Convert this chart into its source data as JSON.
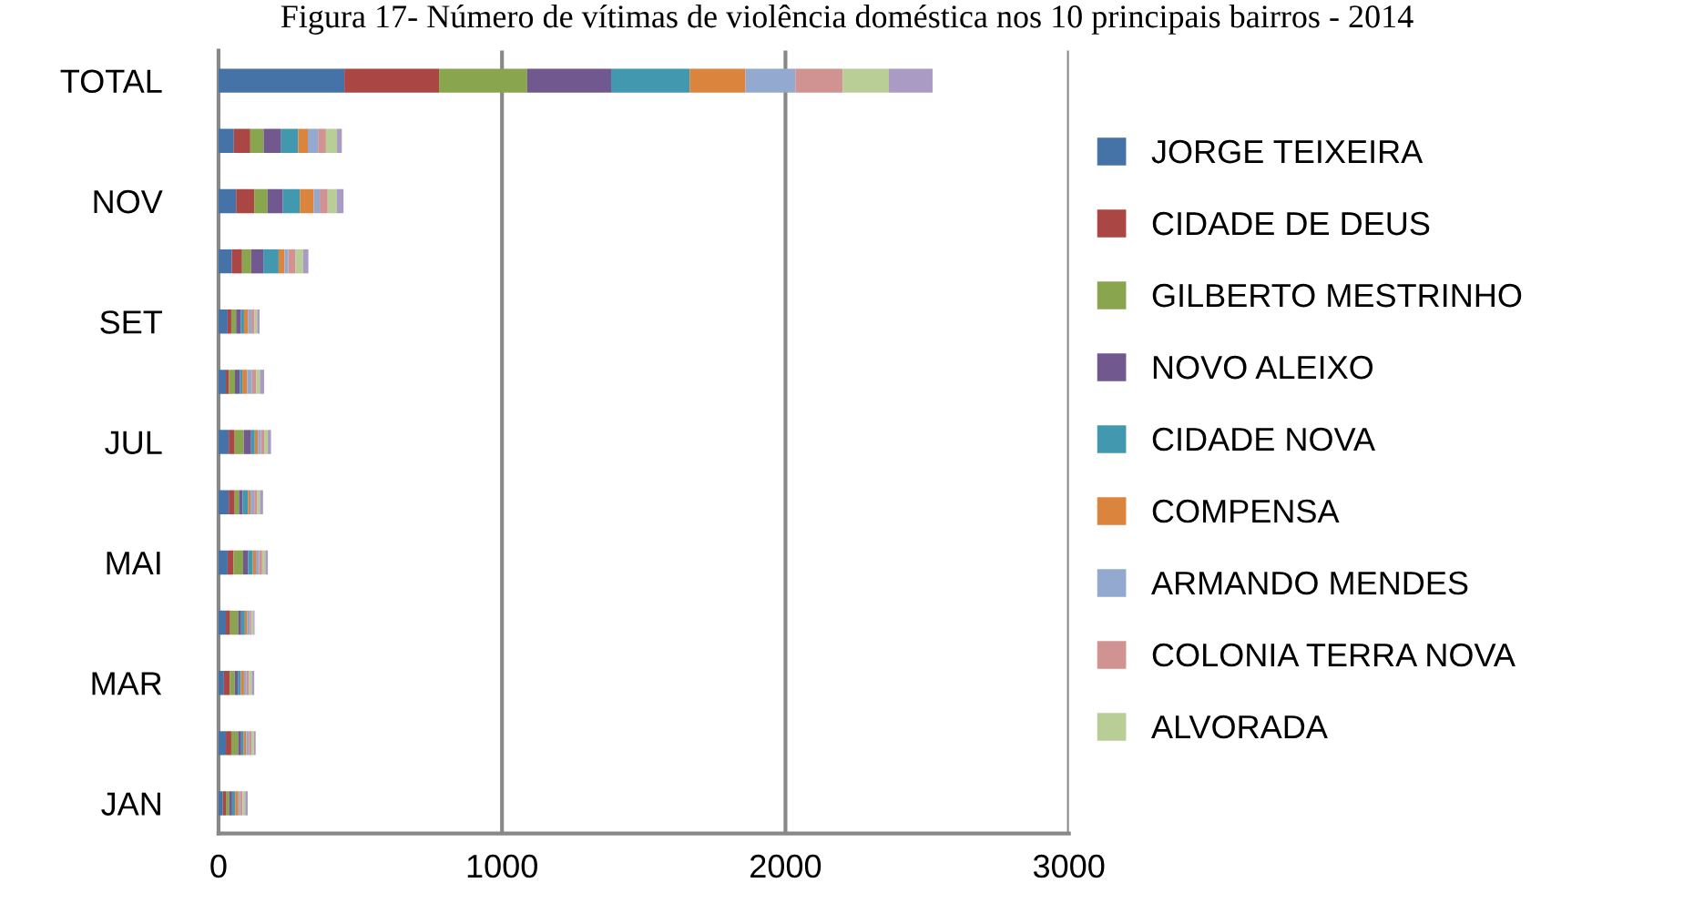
{
  "chart_data": {
    "type": "bar",
    "orientation": "horizontal",
    "stacked": true,
    "title": "Figura 17- Número de vítimas de violência doméstica nos 10 principais bairros - 2014",
    "categories": [
      "TOTAL",
      null,
      "NOV",
      null,
      "SET",
      null,
      "JUL",
      null,
      "MAI",
      null,
      "MAR",
      null,
      "JAN"
    ],
    "series": [
      {
        "name": "JORGE TEIXEIRA",
        "color": "#4572a7",
        "values": [
          444,
          54,
          62,
          47,
          32,
          26,
          36,
          36,
          32,
          26,
          19,
          26,
          15
        ]
      },
      {
        "name": "CIDADE DE DEUS",
        "color": "#aa4643",
        "values": [
          334,
          58,
          64,
          36,
          13,
          11,
          21,
          21,
          21,
          15,
          21,
          19,
          11
        ]
      },
      {
        "name": "GILBERTO MESTRINHO",
        "color": "#89a54e",
        "values": [
          311,
          47,
          47,
          32,
          17,
          21,
          32,
          15,
          34,
          28,
          17,
          24,
          11
        ]
      },
      {
        "name": "NOVO ALEIXO",
        "color": "#71588f",
        "values": [
          296,
          62,
          54,
          43,
          17,
          17,
          26,
          13,
          17,
          11,
          11,
          11,
          11
        ]
      },
      {
        "name": "CIDADE NOVA",
        "color": "#4198af",
        "values": [
          277,
          60,
          60,
          54,
          11,
          9,
          13,
          19,
          17,
          13,
          11,
          9,
          11
        ]
      },
      {
        "name": "COMPENSA",
        "color": "#db843d",
        "values": [
          197,
          34,
          49,
          21,
          15,
          17,
          11,
          9,
          11,
          9,
          11,
          9,
          11
        ]
      },
      {
        "name": "ARMANDO MENDES",
        "color": "#93a9cf",
        "values": [
          176,
          36,
          21,
          13,
          11,
          17,
          11,
          13,
          11,
          9,
          9,
          9,
          6
        ]
      },
      {
        "name": "COLONIA TERRA NOVA",
        "color": "#d19392",
        "values": [
          167,
          28,
          28,
          26,
          11,
          15,
          11,
          11,
          11,
          6,
          9,
          9,
          9
        ]
      },
      {
        "name": "ALVORADA",
        "color": "#b9cd96",
        "values": [
          163,
          39,
          32,
          26,
          9,
          13,
          13,
          9,
          11,
          6,
          9,
          9,
          9
        ]
      },
      {
        "color": "#a99bc4",
        "values": [
          154,
          17,
          24,
          19,
          9,
          15,
          11,
          11,
          9,
          4,
          9,
          6,
          9
        ]
      }
    ],
    "xlim": [
      0,
      3000
    ],
    "xticks": [
      0,
      1000,
      2000,
      3000
    ],
    "grid": "x",
    "legend": "right"
  }
}
